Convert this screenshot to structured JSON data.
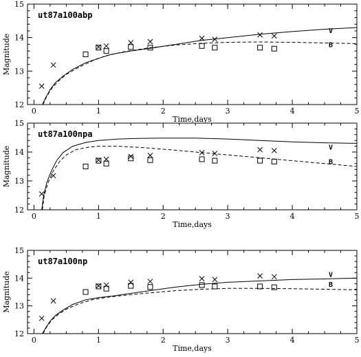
{
  "chart_data": [
    {
      "type": "line",
      "title": "ut87a100abp",
      "xlabel": "Time,days",
      "ylabel": "Magnitude",
      "xlim": [
        -0.1,
        5
      ],
      "ylim": [
        12,
        15
      ],
      "x_ticks": [
        "0",
        "1",
        "2",
        "3",
        "4",
        "5"
      ],
      "y_ticks": [
        "12",
        "13",
        "14",
        "15"
      ],
      "series": [
        {
          "name": "V",
          "style": "solid",
          "points": [
            [
              0.13,
              12.0
            ],
            [
              0.18,
              12.2
            ],
            [
              0.25,
              12.45
            ],
            [
              0.33,
              12.65
            ],
            [
              0.45,
              12.85
            ],
            [
              0.6,
              13.05
            ],
            [
              0.8,
              13.25
            ],
            [
              1.0,
              13.38
            ],
            [
              1.2,
              13.5
            ],
            [
              1.5,
              13.6
            ],
            [
              1.8,
              13.68
            ],
            [
              2.2,
              13.8
            ],
            [
              2.6,
              13.92
            ],
            [
              3.0,
              14.0
            ],
            [
              3.5,
              14.1
            ],
            [
              4.0,
              14.18
            ],
            [
              4.5,
              14.25
            ],
            [
              5.0,
              14.3
            ]
          ]
        },
        {
          "name": "B",
          "style": "dashed",
          "points": [
            [
              0.14,
              12.0
            ],
            [
              0.2,
              12.25
            ],
            [
              0.28,
              12.5
            ],
            [
              0.38,
              12.7
            ],
            [
              0.5,
              12.9
            ],
            [
              0.7,
              13.12
            ],
            [
              0.9,
              13.3
            ],
            [
              1.1,
              13.45
            ],
            [
              1.4,
              13.58
            ],
            [
              1.8,
              13.7
            ],
            [
              2.2,
              13.78
            ],
            [
              2.6,
              13.83
            ],
            [
              3.0,
              13.86
            ],
            [
              3.5,
              13.87
            ],
            [
              4.0,
              13.86
            ],
            [
              4.5,
              13.84
            ],
            [
              5.0,
              13.82
            ]
          ]
        }
      ],
      "markers_x": [
        [
          0.12,
          12.55
        ],
        [
          0.3,
          13.18
        ],
        [
          1.0,
          13.72
        ],
        [
          1.12,
          13.75
        ],
        [
          1.5,
          13.85
        ],
        [
          1.8,
          13.88
        ],
        [
          2.6,
          13.98
        ],
        [
          2.8,
          13.95
        ],
        [
          3.5,
          14.08
        ],
        [
          3.72,
          14.05
        ]
      ],
      "markers_square": [
        [
          0.8,
          13.5
        ],
        [
          1.0,
          13.7
        ],
        [
          1.12,
          13.6
        ],
        [
          1.5,
          13.72
        ],
        [
          1.8,
          13.7
        ],
        [
          2.6,
          13.75
        ],
        [
          2.8,
          13.7
        ],
        [
          3.5,
          13.7
        ],
        [
          3.72,
          13.67
        ]
      ],
      "labels": [
        {
          "text": "V",
          "x": 4.35,
          "y": 14.22
        },
        {
          "text": "B",
          "x": 4.35,
          "y": 13.8
        }
      ]
    },
    {
      "type": "line",
      "title": "ut87a100npa",
      "xlabel": "Time,days",
      "ylabel": "Magnitude",
      "xlim": [
        -0.1,
        5
      ],
      "ylim": [
        12,
        15
      ],
      "x_ticks": [
        "0",
        "1",
        "2",
        "3",
        "4",
        "5"
      ],
      "y_ticks": [
        "12",
        "13",
        "14",
        "15"
      ],
      "series": [
        {
          "name": "V",
          "style": "solid",
          "points": [
            [
              0.12,
              12.0
            ],
            [
              0.15,
              12.5
            ],
            [
              0.2,
              12.95
            ],
            [
              0.27,
              13.35
            ],
            [
              0.35,
              13.7
            ],
            [
              0.45,
              13.98
            ],
            [
              0.6,
              14.2
            ],
            [
              0.8,
              14.33
            ],
            [
              1.0,
              14.4
            ],
            [
              1.3,
              14.45
            ],
            [
              1.6,
              14.47
            ],
            [
              2.0,
              14.48
            ],
            [
              2.5,
              14.48
            ],
            [
              3.0,
              14.45
            ],
            [
              3.5,
              14.4
            ],
            [
              4.0,
              14.35
            ],
            [
              4.5,
              14.32
            ],
            [
              5.0,
              14.3
            ]
          ]
        },
        {
          "name": "B",
          "style": "dashed",
          "points": [
            [
              0.13,
              12.0
            ],
            [
              0.16,
              12.5
            ],
            [
              0.22,
              12.95
            ],
            [
              0.3,
              13.35
            ],
            [
              0.4,
              13.68
            ],
            [
              0.5,
              13.9
            ],
            [
              0.65,
              14.08
            ],
            [
              0.85,
              14.17
            ],
            [
              1.0,
              14.2
            ],
            [
              1.3,
              14.2
            ],
            [
              1.7,
              14.15
            ],
            [
              2.1,
              14.08
            ],
            [
              2.5,
              14.0
            ],
            [
              3.0,
              13.9
            ],
            [
              3.5,
              13.8
            ],
            [
              4.0,
              13.7
            ],
            [
              4.5,
              13.6
            ],
            [
              5.0,
              13.5
            ]
          ]
        }
      ],
      "markers_x": [
        [
          0.12,
          12.55
        ],
        [
          0.3,
          13.18
        ],
        [
          1.0,
          13.72
        ],
        [
          1.12,
          13.75
        ],
        [
          1.5,
          13.85
        ],
        [
          1.8,
          13.88
        ],
        [
          2.6,
          13.98
        ],
        [
          2.8,
          13.95
        ],
        [
          3.5,
          14.08
        ],
        [
          3.72,
          14.05
        ]
      ],
      "markers_square": [
        [
          0.8,
          13.5
        ],
        [
          1.0,
          13.7
        ],
        [
          1.12,
          13.6
        ],
        [
          1.5,
          13.78
        ],
        [
          1.8,
          13.72
        ],
        [
          2.6,
          13.75
        ],
        [
          2.8,
          13.7
        ],
        [
          3.5,
          13.7
        ],
        [
          3.72,
          13.67
        ]
      ],
      "labels": [
        {
          "text": "V",
          "x": 4.35,
          "y": 14.18
        },
        {
          "text": "B",
          "x": 4.35,
          "y": 13.68
        }
      ]
    },
    {
      "type": "line",
      "title": "ut87a100np",
      "xlabel": "Time,days",
      "ylabel": "Magnitude",
      "xlim": [
        -0.1,
        5
      ],
      "ylim": [
        12,
        15
      ],
      "x_ticks": [
        "0",
        "1",
        "2",
        "3",
        "4",
        "5"
      ],
      "y_ticks": [
        "12",
        "13",
        "14",
        "15"
      ],
      "series": [
        {
          "name": "V",
          "style": "solid",
          "points": [
            [
              0.13,
              12.0
            ],
            [
              0.18,
              12.2
            ],
            [
              0.25,
              12.45
            ],
            [
              0.33,
              12.65
            ],
            [
              0.45,
              12.85
            ],
            [
              0.6,
              13.05
            ],
            [
              0.8,
              13.22
            ],
            [
              1.0,
              13.3
            ],
            [
              1.2,
              13.35
            ],
            [
              1.5,
              13.45
            ],
            [
              1.8,
              13.55
            ],
            [
              2.2,
              13.68
            ],
            [
              2.6,
              13.78
            ],
            [
              3.0,
              13.85
            ],
            [
              3.5,
              13.9
            ],
            [
              4.0,
              13.95
            ],
            [
              4.5,
              13.97
            ],
            [
              5.0,
              14.0
            ]
          ]
        },
        {
          "name": "B",
          "style": "dashed",
          "points": [
            [
              0.14,
              12.0
            ],
            [
              0.2,
              12.25
            ],
            [
              0.28,
              12.5
            ],
            [
              0.38,
              12.7
            ],
            [
              0.5,
              12.88
            ],
            [
              0.7,
              13.08
            ],
            [
              0.9,
              13.22
            ],
            [
              1.1,
              13.3
            ],
            [
              1.4,
              13.38
            ],
            [
              1.8,
              13.47
            ],
            [
              2.2,
              13.55
            ],
            [
              2.6,
              13.6
            ],
            [
              3.0,
              13.63
            ],
            [
              3.5,
              13.63
            ],
            [
              4.0,
              13.62
            ],
            [
              4.5,
              13.6
            ],
            [
              5.0,
              13.58
            ]
          ]
        }
      ],
      "markers_x": [
        [
          0.12,
          12.55
        ],
        [
          0.3,
          13.18
        ],
        [
          1.0,
          13.72
        ],
        [
          1.12,
          13.75
        ],
        [
          1.5,
          13.85
        ],
        [
          1.8,
          13.88
        ],
        [
          2.6,
          13.98
        ],
        [
          2.8,
          13.95
        ],
        [
          3.5,
          14.08
        ],
        [
          3.72,
          14.05
        ]
      ],
      "markers_square": [
        [
          0.8,
          13.5
        ],
        [
          1.0,
          13.7
        ],
        [
          1.12,
          13.62
        ],
        [
          1.5,
          13.72
        ],
        [
          1.8,
          13.68
        ],
        [
          2.6,
          13.75
        ],
        [
          2.8,
          13.7
        ],
        [
          3.5,
          13.7
        ],
        [
          3.72,
          13.67
        ]
      ],
      "labels": [
        {
          "text": "V",
          "x": 4.35,
          "y": 14.15
        },
        {
          "text": "B",
          "x": 4.35,
          "y": 13.78
        }
      ]
    }
  ]
}
